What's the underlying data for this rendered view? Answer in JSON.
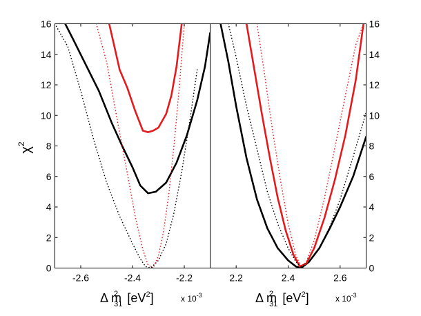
{
  "chart_data": [
    {
      "type": "line",
      "panel": "left",
      "ylabel_base": "χ",
      "ylabel_sup": "2",
      "xlabel_prefix": "Δ m",
      "xlabel_sup": "2",
      "xlabel_sub": "31",
      "xlabel_unit_open": "[eV",
      "xlabel_unit_sup": "2",
      "xlabel_unit_close": "]",
      "xscale_base": "x 10",
      "xscale_exp": "-3",
      "xlim": [
        -2.7,
        -2.1
      ],
      "ylim": [
        0,
        16
      ],
      "xticks": [
        "-2.6",
        "-2.4",
        "-2.2"
      ],
      "xtick_values": [
        -2.6,
        -2.4,
        -2.2
      ],
      "yticks": [
        "0",
        "2",
        "4",
        "6",
        "8",
        "10",
        "12",
        "14",
        "16"
      ],
      "ytick_values": [
        0,
        2,
        4,
        6,
        8,
        10,
        12,
        14,
        16
      ],
      "series": [
        {
          "name": "black-solid",
          "color": "#000000",
          "style": "solid",
          "x": [
            -2.66,
            -2.63,
            -2.58,
            -2.53,
            -2.48,
            -2.44,
            -2.4,
            -2.37,
            -2.34,
            -2.31,
            -2.27,
            -2.23,
            -2.19,
            -2.15,
            -2.12,
            -2.1
          ],
          "y": [
            16,
            15.0,
            13.3,
            11.6,
            9.5,
            8.0,
            6.6,
            5.4,
            4.9,
            5.0,
            5.6,
            6.9,
            8.7,
            11.0,
            13.2,
            15.4
          ]
        },
        {
          "name": "red-solid",
          "color": "#e41a1c",
          "style": "solid",
          "x": [
            -2.49,
            -2.47,
            -2.45,
            -2.42,
            -2.39,
            -2.36,
            -2.34,
            -2.32,
            -2.3,
            -2.27,
            -2.25,
            -2.23,
            -2.21
          ],
          "y": [
            16,
            14.5,
            13.0,
            11.8,
            10.3,
            9.0,
            8.9,
            9.0,
            9.2,
            10.1,
            11.3,
            13.2,
            16
          ]
        },
        {
          "name": "black-dotted",
          "color": "#000000",
          "style": "dotted",
          "x": [
            -2.7,
            -2.65,
            -2.6,
            -2.55,
            -2.5,
            -2.45,
            -2.4,
            -2.37,
            -2.35,
            -2.33,
            -2.3,
            -2.27,
            -2.24,
            -2.21,
            -2.18,
            -2.15
          ],
          "y": [
            16,
            14.5,
            11.6,
            8.4,
            5.6,
            3.4,
            1.6,
            0.6,
            0.1,
            0.0,
            0.5,
            1.6,
            3.6,
            6.3,
            9.5,
            13.0
          ]
        },
        {
          "name": "red-dotted",
          "color": "#e41a1c",
          "style": "dotted",
          "x": [
            -2.54,
            -2.5,
            -2.46,
            -2.42,
            -2.39,
            -2.36,
            -2.34,
            -2.32,
            -2.3,
            -2.28,
            -2.26,
            -2.24,
            -2.22,
            -2.2
          ],
          "y": [
            16,
            13.5,
            9.8,
            6.2,
            3.4,
            1.2,
            0.2,
            0.0,
            0.8,
            2.4,
            4.8,
            8.0,
            11.7,
            16
          ]
        }
      ]
    },
    {
      "type": "line",
      "panel": "right",
      "xlabel_prefix": "Δ m",
      "xlabel_sup": "2",
      "xlabel_sub": "31",
      "xlabel_unit_open": "[eV",
      "xlabel_unit_sup": "2",
      "xlabel_unit_close": "]",
      "xscale_base": "x 10",
      "xscale_exp": "-3",
      "xlim": [
        2.1,
        2.7
      ],
      "ylim": [
        0,
        16
      ],
      "xticks": [
        "2.2",
        "2.4",
        "2.6"
      ],
      "xtick_values": [
        2.2,
        2.4,
        2.6
      ],
      "yticks": [
        "0",
        "2",
        "4",
        "6",
        "8",
        "10",
        "12",
        "14",
        "16"
      ],
      "ytick_values": [
        0,
        2,
        4,
        6,
        8,
        10,
        12,
        14,
        16
      ],
      "series": [
        {
          "name": "black-solid",
          "color": "#000000",
          "style": "solid",
          "x": [
            2.14,
            2.17,
            2.2,
            2.24,
            2.28,
            2.32,
            2.36,
            2.4,
            2.43,
            2.45,
            2.48,
            2.52,
            2.56,
            2.6,
            2.65,
            2.7
          ],
          "y": [
            16,
            13.5,
            10.6,
            7.2,
            4.5,
            2.6,
            1.3,
            0.5,
            0.1,
            0.0,
            0.4,
            1.3,
            2.6,
            4.0,
            6.0,
            8.6
          ]
        },
        {
          "name": "red-solid",
          "color": "#e41a1c",
          "style": "solid",
          "x": [
            2.24,
            2.27,
            2.3,
            2.33,
            2.36,
            2.39,
            2.42,
            2.445,
            2.47,
            2.5,
            2.54,
            2.58,
            2.62,
            2.66,
            2.69
          ],
          "y": [
            16,
            13.0,
            10.0,
            7.2,
            4.6,
            2.5,
            0.9,
            0.1,
            0.3,
            1.3,
            3.3,
            5.8,
            8.7,
            12.3,
            16
          ]
        },
        {
          "name": "black-dotted",
          "color": "#000000",
          "style": "dotted",
          "x": [
            2.17,
            2.2,
            2.24,
            2.28,
            2.32,
            2.36,
            2.4,
            2.43,
            2.45,
            2.48,
            2.52,
            2.56,
            2.6,
            2.65,
            2.7
          ],
          "y": [
            16,
            13.8,
            10.6,
            7.8,
            5.0,
            2.9,
            1.3,
            0.4,
            0.1,
            0.4,
            1.3,
            2.7,
            4.5,
            7.3,
            10.2
          ]
        },
        {
          "name": "red-dotted",
          "color": "#e41a1c",
          "style": "dotted",
          "x": [
            2.28,
            2.31,
            2.34,
            2.37,
            2.4,
            2.43,
            2.45,
            2.47,
            2.5,
            2.54,
            2.58,
            2.62,
            2.66,
            2.69
          ],
          "y": [
            16,
            12.6,
            9.0,
            5.8,
            2.9,
            0.8,
            0.1,
            0.4,
            1.8,
            4.6,
            7.9,
            11.3,
            14.6,
            16
          ]
        }
      ]
    }
  ]
}
